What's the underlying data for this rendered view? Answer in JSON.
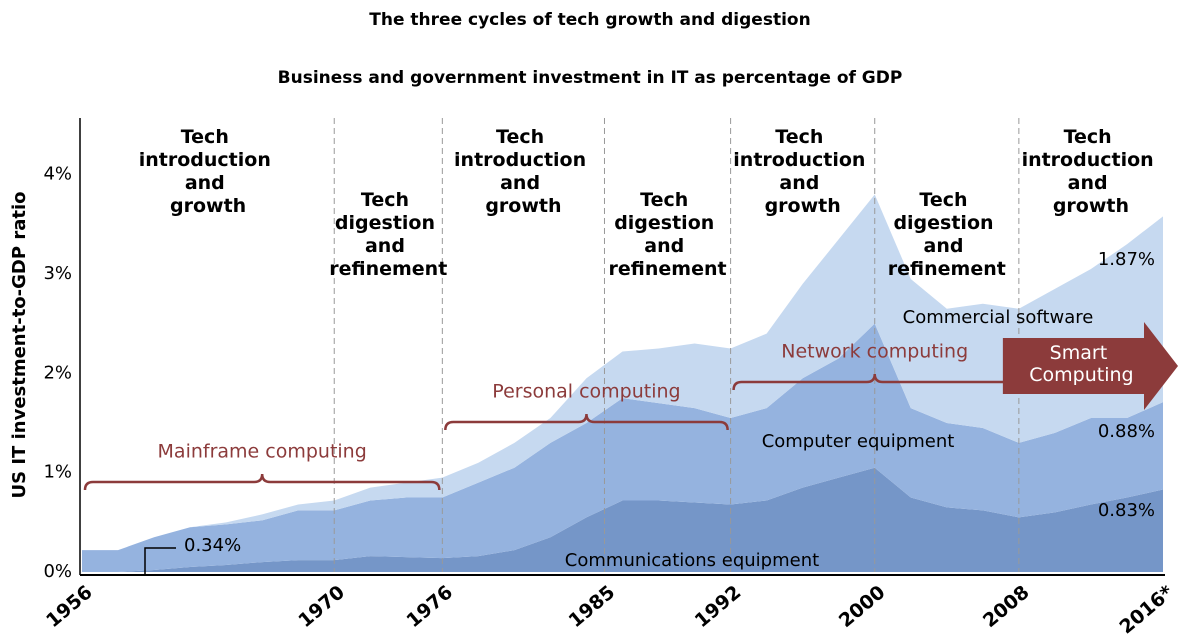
{
  "chart_data": {
    "type": "area",
    "title": "The three cycles of tech growth and digestion",
    "subtitle": "Business and government investment in IT as percentage of GDP",
    "y_label": "US IT investment-to-GDP ratio",
    "stacked": true,
    "x": [
      1956,
      1958,
      1960,
      1962,
      1964,
      1966,
      1968,
      1970,
      1972,
      1974,
      1976,
      1978,
      1980,
      1982,
      1984,
      1986,
      1988,
      1990,
      1992,
      1994,
      1996,
      1998,
      2000,
      2002,
      2004,
      2006,
      2008,
      2010,
      2012,
      2014,
      2016
    ],
    "series": [
      {
        "name": "Communications equipment",
        "color": "#7596c8",
        "values": [
          0,
          0,
          0.02,
          0.05,
          0.07,
          0.1,
          0.12,
          0.12,
          0.16,
          0.15,
          0.14,
          0.16,
          0.22,
          0.35,
          0.55,
          0.72,
          0.72,
          0.7,
          0.68,
          0.72,
          0.85,
          0.95,
          1.05,
          0.75,
          0.65,
          0.62,
          0.55,
          0.6,
          0.68,
          0.75,
          0.83
        ],
        "value_labels": [
          null,
          null,
          null,
          null,
          null,
          null,
          null,
          null,
          null,
          null,
          null,
          null,
          null,
          null,
          null,
          null,
          null,
          null,
          null,
          null,
          null,
          null,
          null,
          null,
          null,
          null,
          null,
          null,
          null,
          null,
          "0.83%"
        ]
      },
      {
        "name": "Computer equipment",
        "color": "#95b3df",
        "values": [
          0.22,
          0.22,
          0.33,
          0.4,
          0.41,
          0.42,
          0.5,
          0.5,
          0.56,
          0.6,
          0.61,
          0.74,
          0.83,
          0.95,
          0.95,
          1.03,
          0.98,
          0.95,
          0.87,
          0.93,
          1.1,
          1.2,
          1.45,
          0.9,
          0.85,
          0.83,
          0.75,
          0.8,
          0.87,
          0.8,
          0.88
        ],
        "value_labels": [
          null,
          null,
          null,
          null,
          null,
          null,
          null,
          null,
          null,
          null,
          null,
          null,
          null,
          null,
          null,
          null,
          null,
          null,
          null,
          null,
          null,
          null,
          null,
          null,
          null,
          null,
          null,
          null,
          null,
          null,
          "0.88%"
        ]
      },
      {
        "name": "Commercial software",
        "color": "#c6d9f0",
        "values": [
          0,
          0,
          0,
          0,
          0.02,
          0.06,
          0.06,
          0.1,
          0.13,
          0.15,
          0.2,
          0.2,
          0.25,
          0.25,
          0.45,
          0.47,
          0.55,
          0.65,
          0.7,
          0.75,
          0.95,
          1.2,
          1.3,
          1.3,
          1.15,
          1.25,
          1.35,
          1.45,
          1.5,
          1.75,
          1.87
        ],
        "value_labels": [
          null,
          null,
          null,
          null,
          null,
          null,
          null,
          null,
          null,
          null,
          null,
          null,
          null,
          null,
          null,
          null,
          null,
          null,
          null,
          null,
          null,
          null,
          null,
          null,
          null,
          null,
          null,
          null,
          null,
          null,
          "1.87%"
        ]
      }
    ],
    "xlim": [
      1956,
      2016
    ],
    "xticks": [
      1956,
      1970,
      1976,
      1985,
      1992,
      2000,
      2008,
      {
        "value": 2016,
        "label": "2016*"
      }
    ],
    "ylim": [
      0,
      4.5
    ],
    "yticks": [
      {
        "value": 0,
        "label": "0%"
      },
      {
        "value": 1,
        "label": "1%"
      },
      {
        "value": 2,
        "label": "2%"
      },
      {
        "value": 3,
        "label": "3%"
      },
      {
        "value": 4,
        "label": "4%"
      }
    ],
    "phases": [
      "Tech introduction and growth",
      "Tech digestion and refinement",
      "Tech introduction and growth",
      "Tech digestion and refinement",
      "Tech introduction and growth",
      "Tech digestion and refinement",
      "Tech introduction and growth"
    ],
    "eras": [
      "Mainframe computing",
      "Personal computing",
      "Network computing",
      "Smart Computing"
    ],
    "era_color": "#8c3b3b",
    "annotations": [
      "0.34%"
    ]
  }
}
